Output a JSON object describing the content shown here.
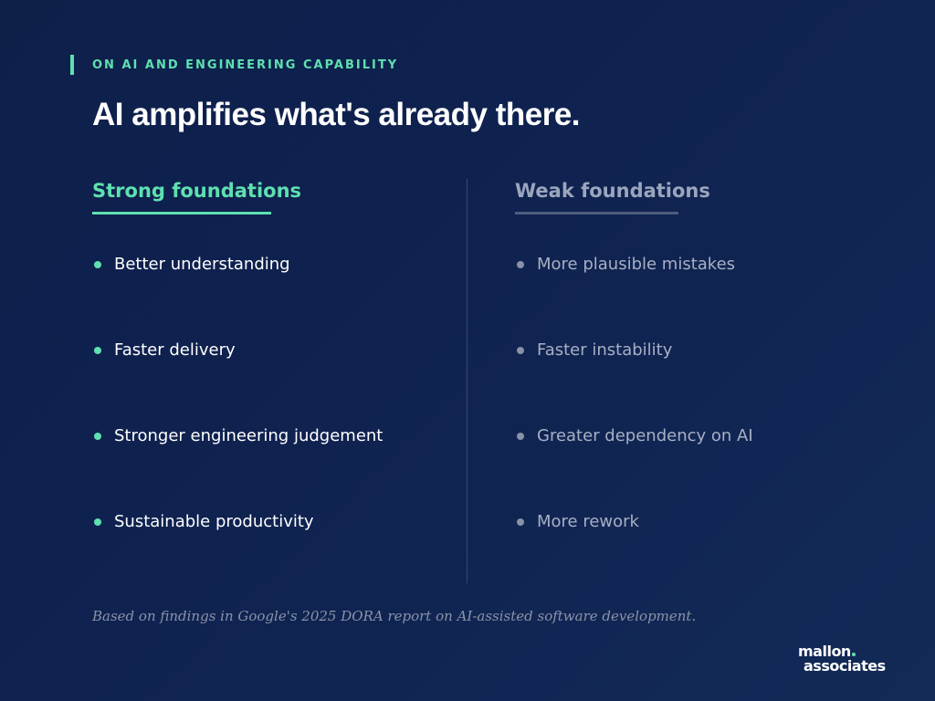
{
  "eyebrow": "ON AI AND ENGINEERING CAPABILITY",
  "headline": "AI amplifies what's already there.",
  "left_column": {
    "heading": "Strong foundations",
    "items": [
      "Better understanding",
      "Faster delivery",
      "Stronger engineering judgement",
      "Sustainable productivity"
    ]
  },
  "right_column": {
    "heading": "Weak foundations",
    "items": [
      "More plausible mistakes",
      "Faster instability",
      "Greater dependency on AI",
      "More rework"
    ]
  },
  "footnote": "Based on findings in Google's 2025 DORA report on AI-assisted software development.",
  "logo": {
    "line1": "mallon",
    "line2": "associates"
  },
  "colors": {
    "accent": "#5ee0b0",
    "background": "#0f2250",
    "muted": "#a7b0c4"
  }
}
